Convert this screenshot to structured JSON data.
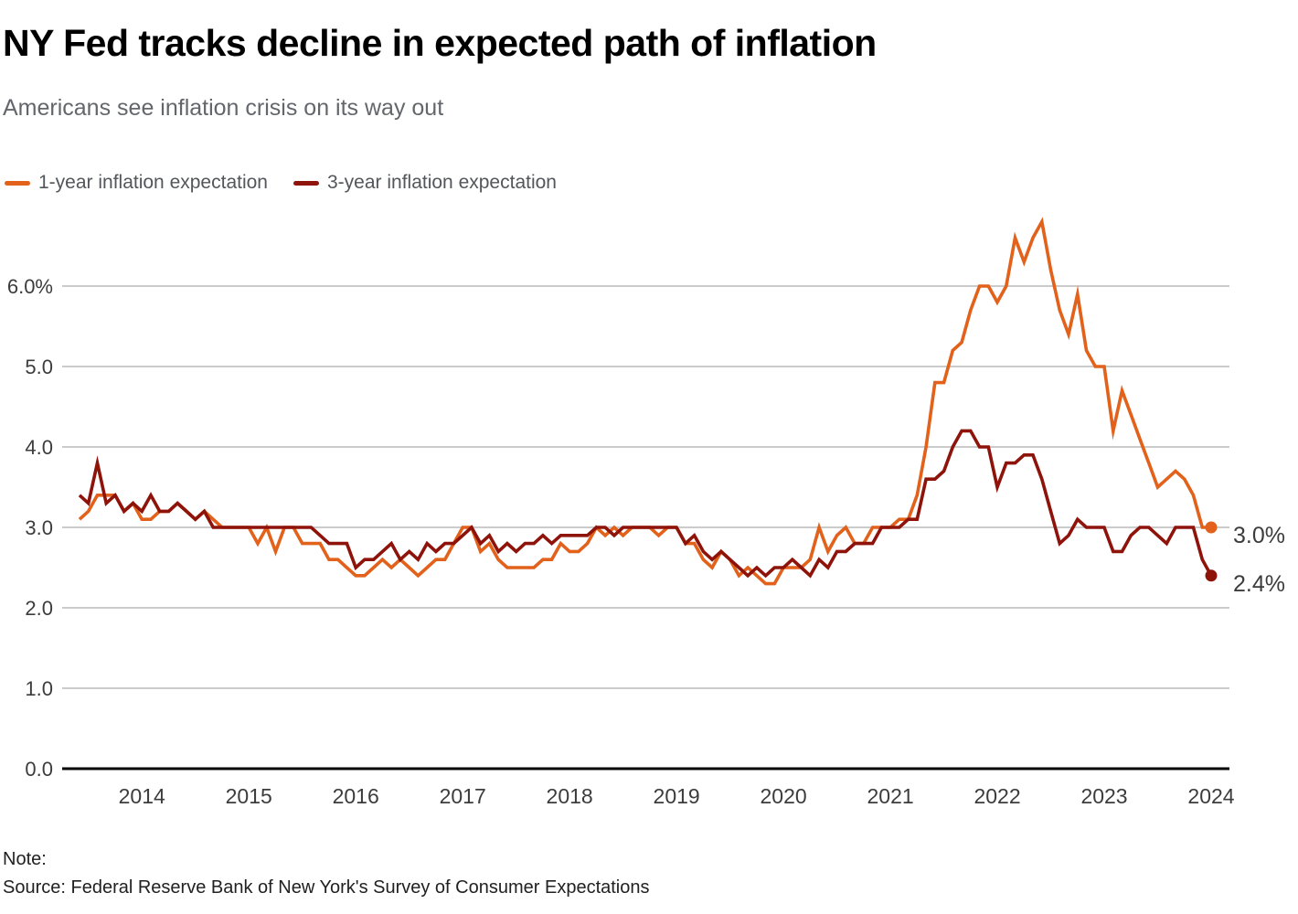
{
  "header": {
    "title": "NY Fed tracks decline in expected path of inflation",
    "subtitle": "Americans see inflation crisis on its way out"
  },
  "footer": {
    "note": "Note:",
    "source": "Source: Federal Reserve Bank of New York's Survey of Consumer Expectations"
  },
  "colors": {
    "orange": "#e2611b",
    "dark_red": "#8e130a",
    "grid": "#cbcbcb",
    "axis": "#000000",
    "axis_text": "#3c3c3c"
  },
  "chart_data": {
    "type": "line",
    "title": "NY Fed tracks decline in expected path of inflation",
    "subtitle": "Americans see inflation crisis on its way out",
    "xlabel": "",
    "ylabel": "",
    "frequency": "monthly",
    "x_start": "2013-06",
    "x_end": "2024-01",
    "x_tick_labels": [
      "2014",
      "2015",
      "2016",
      "2017",
      "2018",
      "2019",
      "2020",
      "2021",
      "2022",
      "2023",
      "2024"
    ],
    "y_ticks": [
      {
        "label": "6.0%",
        "value": 6.0
      },
      {
        "label": "5.0",
        "value": 5.0
      },
      {
        "label": "4.0",
        "value": 4.0
      },
      {
        "label": "3.0",
        "value": 3.0
      },
      {
        "label": "2.0",
        "value": 2.0
      },
      {
        "label": "1.0",
        "value": 1.0
      },
      {
        "label": "0.0",
        "value": 0.0
      }
    ],
    "ylim": [
      0,
      6.9
    ],
    "grid": "horizontal",
    "legend_position": "top-left",
    "series": [
      {
        "id": "1-year",
        "name": "1-year inflation expectation",
        "color": "#e2611b",
        "end_label": "3.0%",
        "end_value": 3.0,
        "values": [
          3.1,
          3.2,
          3.4,
          3.4,
          3.4,
          3.2,
          3.3,
          3.1,
          3.1,
          3.2,
          3.2,
          3.3,
          3.2,
          3.1,
          3.2,
          3.1,
          3.0,
          3.0,
          3.0,
          3.0,
          2.8,
          3.0,
          2.7,
          3.0,
          3.0,
          2.8,
          2.8,
          2.8,
          2.6,
          2.6,
          2.5,
          2.4,
          2.4,
          2.5,
          2.6,
          2.5,
          2.6,
          2.5,
          2.4,
          2.5,
          2.6,
          2.6,
          2.8,
          3.0,
          3.0,
          2.7,
          2.8,
          2.6,
          2.5,
          2.5,
          2.5,
          2.5,
          2.6,
          2.6,
          2.8,
          2.7,
          2.7,
          2.8,
          3.0,
          2.9,
          3.0,
          2.9,
          3.0,
          3.0,
          3.0,
          2.9,
          3.0,
          3.0,
          2.8,
          2.8,
          2.6,
          2.5,
          2.7,
          2.6,
          2.4,
          2.5,
          2.4,
          2.3,
          2.3,
          2.5,
          2.5,
          2.5,
          2.6,
          3.0,
          2.7,
          2.9,
          3.0,
          2.8,
          2.8,
          3.0,
          3.0,
          3.0,
          3.1,
          3.1,
          3.4,
          4.0,
          4.8,
          4.8,
          5.2,
          5.3,
          5.7,
          6.0,
          6.0,
          5.8,
          6.0,
          6.6,
          6.3,
          6.6,
          6.8,
          6.2,
          5.7,
          5.4,
          5.9,
          5.2,
          5.0,
          5.0,
          4.2,
          4.7,
          4.4,
          4.1,
          3.8,
          3.5,
          3.6,
          3.7,
          3.6,
          3.4,
          3.0,
          3.0
        ]
      },
      {
        "id": "3-year",
        "name": "3-year inflation expectation",
        "color": "#8e130a",
        "end_label": "2.4%",
        "end_value": 2.4,
        "values": [
          3.4,
          3.3,
          3.8,
          3.3,
          3.4,
          3.2,
          3.3,
          3.2,
          3.4,
          3.2,
          3.2,
          3.3,
          3.2,
          3.1,
          3.2,
          3.0,
          3.0,
          3.0,
          3.0,
          3.0,
          3.0,
          3.0,
          3.0,
          3.0,
          3.0,
          3.0,
          3.0,
          2.9,
          2.8,
          2.8,
          2.8,
          2.5,
          2.6,
          2.6,
          2.7,
          2.8,
          2.6,
          2.7,
          2.6,
          2.8,
          2.7,
          2.8,
          2.8,
          2.9,
          3.0,
          2.8,
          2.9,
          2.7,
          2.8,
          2.7,
          2.8,
          2.8,
          2.9,
          2.8,
          2.9,
          2.9,
          2.9,
          2.9,
          3.0,
          3.0,
          2.9,
          3.0,
          3.0,
          3.0,
          3.0,
          3.0,
          3.0,
          3.0,
          2.8,
          2.9,
          2.7,
          2.6,
          2.7,
          2.6,
          2.5,
          2.4,
          2.5,
          2.4,
          2.5,
          2.5,
          2.6,
          2.5,
          2.4,
          2.6,
          2.5,
          2.7,
          2.7,
          2.8,
          2.8,
          2.8,
          3.0,
          3.0,
          3.0,
          3.1,
          3.1,
          3.6,
          3.6,
          3.7,
          4.0,
          4.2,
          4.2,
          4.0,
          4.0,
          3.5,
          3.8,
          3.8,
          3.9,
          3.9,
          3.6,
          3.2,
          2.8,
          2.9,
          3.1,
          3.0,
          3.0,
          3.0,
          2.7,
          2.7,
          2.9,
          3.0,
          3.0,
          2.9,
          2.8,
          3.0,
          3.0,
          3.0,
          2.6,
          2.4
        ]
      }
    ]
  }
}
